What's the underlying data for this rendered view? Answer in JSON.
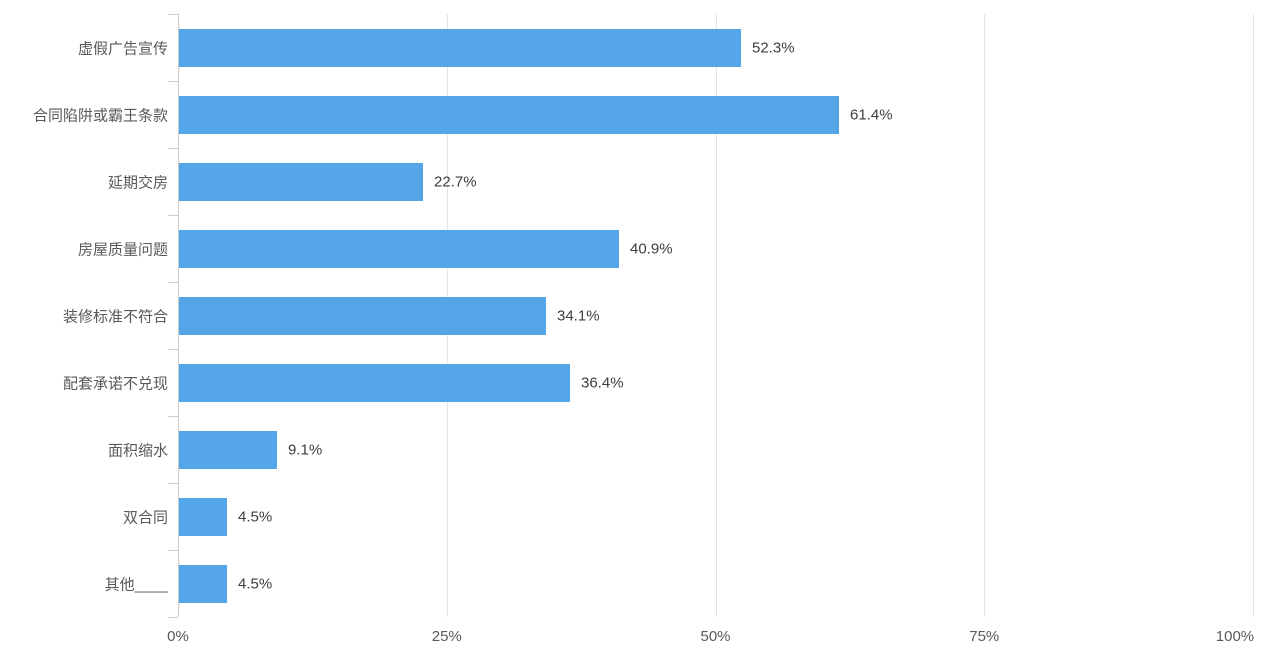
{
  "chart_data": {
    "type": "bar",
    "orientation": "horizontal",
    "title": "",
    "xlabel": "",
    "ylabel": "",
    "xlim": [
      0,
      100
    ],
    "grid": true,
    "legend": false,
    "categories": [
      "虚假广告宣传",
      "合同陷阱或霸王条款",
      "延期交房",
      "房屋质量问题",
      "装修标准不符合",
      "配套承诺不兑现",
      "面积缩水",
      "双合同",
      "其他____"
    ],
    "values": [
      52.3,
      61.4,
      22.7,
      40.9,
      34.1,
      36.4,
      9.1,
      4.5,
      4.5
    ],
    "value_labels": [
      "52.3%",
      "61.4%",
      "22.7%",
      "40.9%",
      "34.1%",
      "36.4%",
      "9.1%",
      "4.5%",
      "4.5%"
    ],
    "x_tick_values": [
      0,
      25,
      50,
      75,
      100
    ],
    "x_tick_labels": [
      "0%",
      "25%",
      "50%",
      "75%",
      "100%"
    ],
    "colors": {
      "bar": "#55A5E9",
      "axis": "#cccccc",
      "grid": "#e4e4e4",
      "category_text": "#595959",
      "value_text": "#3d3d3d",
      "axis_text": "#595959"
    }
  }
}
